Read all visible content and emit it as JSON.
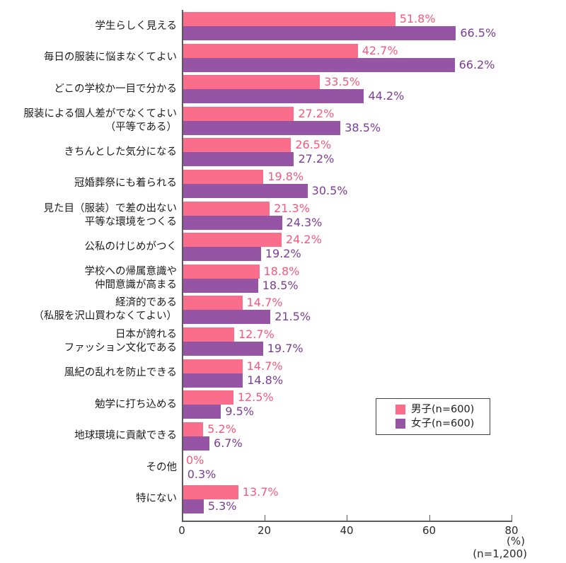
{
  "chart_data": {
    "type": "bar",
    "orientation": "horizontal",
    "title": "",
    "xlabel_unit": "(%)",
    "sample_note": "(n=1,200)",
    "xlim": [
      0,
      80
    ],
    "x_ticks": [
      0,
      20,
      40,
      60,
      80
    ],
    "grid": false,
    "legend_position": "bottom-right",
    "series_meta": [
      {
        "key": "male",
        "name": "男子(n=600)",
        "color": "#FA6E8B",
        "label_color": "#F8597C"
      },
      {
        "key": "female",
        "name": "女子(n=600)",
        "color": "#9655A4",
        "label_color": "#7C3D96"
      }
    ],
    "categories": [
      {
        "label_lines": [
          "学生らしく見える"
        ],
        "male": 51.8,
        "female": 66.5,
        "male_label": "51.8%",
        "female_label": "66.5%"
      },
      {
        "label_lines": [
          "毎日の服装に悩まなくてよい"
        ],
        "male": 42.7,
        "female": 66.2,
        "male_label": "42.7%",
        "female_label": "66.2%"
      },
      {
        "label_lines": [
          "どこの学校か一目で分かる"
        ],
        "male": 33.5,
        "female": 44.2,
        "male_label": "33.5%",
        "female_label": "44.2%"
      },
      {
        "label_lines": [
          "服装による個人差がでなくてよい",
          "（平等である）"
        ],
        "male": 27.2,
        "female": 38.5,
        "male_label": "27.2%",
        "female_label": "38.5%"
      },
      {
        "label_lines": [
          "きちんとした気分になる"
        ],
        "male": 26.5,
        "female": 27.2,
        "male_label": "26.5%",
        "female_label": "27.2%"
      },
      {
        "label_lines": [
          "冠婚葬祭にも着られる"
        ],
        "male": 19.8,
        "female": 30.5,
        "male_label": "19.8%",
        "female_label": "30.5%"
      },
      {
        "label_lines": [
          "見た目（服装）で差の出ない",
          "平等な環境をつくる"
        ],
        "male": 21.3,
        "female": 24.3,
        "male_label": "21.3%",
        "female_label": "24.3%"
      },
      {
        "label_lines": [
          "公私のけじめがつく"
        ],
        "male": 24.2,
        "female": 19.2,
        "male_label": "24.2%",
        "female_label": "19.2%"
      },
      {
        "label_lines": [
          "学校への帰属意識や",
          "仲間意識が高まる"
        ],
        "male": 18.8,
        "female": 18.5,
        "male_label": "18.8%",
        "female_label": "18.5%"
      },
      {
        "label_lines": [
          "経済的である",
          "（私服を沢山買わなくてよい）"
        ],
        "male": 14.7,
        "female": 21.5,
        "male_label": "14.7%",
        "female_label": "21.5%"
      },
      {
        "label_lines": [
          "日本が誇れる",
          "ファッション文化である"
        ],
        "male": 12.7,
        "female": 19.7,
        "male_label": "12.7%",
        "female_label": "19.7%"
      },
      {
        "label_lines": [
          "風紀の乱れを防止できる"
        ],
        "male": 14.7,
        "female": 14.8,
        "male_label": "14.7%",
        "female_label": "14.8%"
      },
      {
        "label_lines": [
          "勉学に打ち込める"
        ],
        "male": 12.5,
        "female": 9.5,
        "male_label": "12.5%",
        "female_label": "9.5%"
      },
      {
        "label_lines": [
          "地球環境に貢献できる"
        ],
        "male": 5.2,
        "female": 6.7,
        "male_label": "5.2%",
        "female_label": "6.7%"
      },
      {
        "label_lines": [
          "その他"
        ],
        "male": 0,
        "female": 0.3,
        "male_label": "0%",
        "female_label": "0.3%"
      },
      {
        "label_lines": [
          "特にない"
        ],
        "male": 13.7,
        "female": 5.3,
        "male_label": "13.7%",
        "female_label": "5.3%"
      }
    ]
  }
}
